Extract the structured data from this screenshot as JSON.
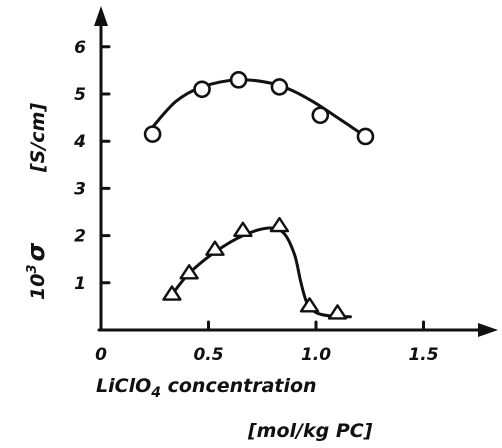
{
  "chart_data": {
    "type": "scatter",
    "title": "",
    "xlabel": "LiClO",
    "xlabel_sub": "4",
    "xlabel_suffix": " concentration",
    "xunit": "[mol/kg PC]",
    "ylabel_prefix": "10",
    "ylabel_sup": "3",
    "ylabel_symbol": "σ",
    "yunit": "[S/cm]",
    "xlim": [
      0,
      1.6
    ],
    "ylim": [
      0,
      6.5
    ],
    "x_ticks": [
      0,
      0.5,
      1.0,
      1.5
    ],
    "x_tick_labels": [
      "0",
      "0.5",
      "1.0",
      "1.5"
    ],
    "y_ticks": [
      1,
      2,
      3,
      4,
      5,
      6
    ],
    "y_tick_labels": [
      "1",
      "2",
      "3",
      "4",
      "5",
      "6"
    ],
    "grid": false,
    "series": [
      {
        "marker": "circle",
        "x": [
          0.24,
          0.47,
          0.64,
          0.83,
          1.02,
          1.23
        ],
        "y": [
          4.15,
          5.1,
          5.3,
          5.15,
          4.55,
          4.1
        ]
      },
      {
        "marker": "triangle",
        "x": [
          0.33,
          0.41,
          0.53,
          0.66,
          0.83,
          0.97,
          1.1
        ],
        "y": [
          0.75,
          1.2,
          1.7,
          2.1,
          2.2,
          0.5,
          0.35
        ]
      }
    ],
    "fits": [
      {
        "x": [
          0.24,
          0.35,
          0.47,
          0.64,
          0.8,
          0.9,
          1.0,
          1.1,
          1.23
        ],
        "y": [
          4.3,
          4.85,
          5.15,
          5.3,
          5.22,
          5.05,
          4.8,
          4.5,
          4.1
        ]
      },
      {
        "x": [
          0.33,
          0.41,
          0.53,
          0.66,
          0.78,
          0.85,
          0.9,
          0.93,
          0.96,
          1.0,
          1.06,
          1.16
        ],
        "y": [
          0.75,
          1.2,
          1.65,
          2.0,
          2.16,
          2.05,
          1.6,
          1.0,
          0.55,
          0.37,
          0.3,
          0.28
        ]
      }
    ]
  }
}
